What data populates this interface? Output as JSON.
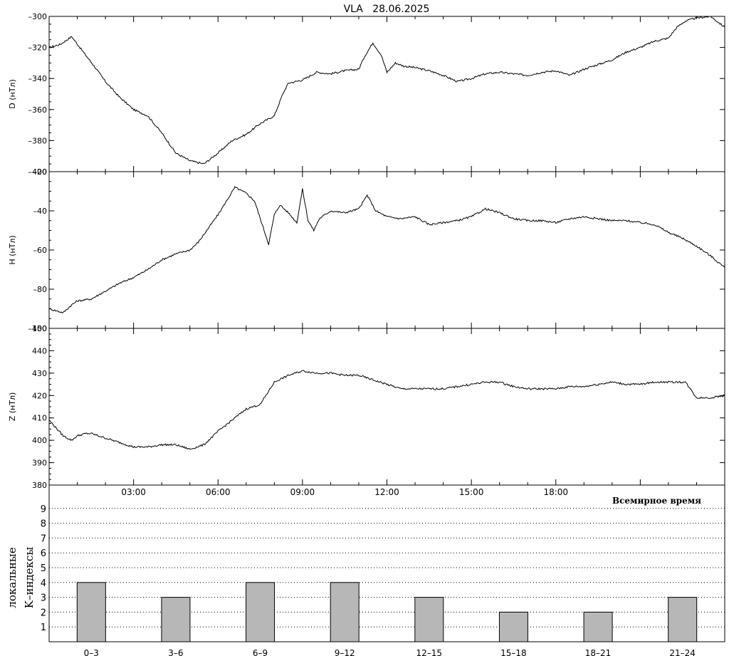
{
  "title": "VLA   28.06.2025",
  "chart_data": [
    {
      "type": "line",
      "id": "D",
      "ylabel": "D (нТл)",
      "ylim": [
        -400,
        -300
      ],
      "yticks": [
        -400,
        -380,
        -360,
        -340,
        -320,
        -300
      ],
      "x": [
        0,
        0.4,
        0.8,
        1.3,
        1.6,
        2,
        2.5,
        3,
        3.5,
        4,
        4.5,
        5,
        5.5,
        6,
        6.5,
        7,
        7.5,
        8,
        8.3,
        8.5,
        9,
        9.5,
        10,
        10.5,
        11,
        11.2,
        11.5,
        11.8,
        12,
        12.3,
        12.6,
        13,
        13.5,
        14,
        14.5,
        15,
        15.5,
        16,
        16.5,
        17,
        17.5,
        18,
        18.5,
        19,
        19.5,
        20,
        20.5,
        21,
        21.5,
        22,
        22.3,
        22.6,
        23,
        23.5,
        24
      ],
      "y": [
        -320,
        -318,
        -313,
        -325,
        -332,
        -342,
        -352,
        -360,
        -364,
        -375,
        -388,
        -393,
        -395,
        -388,
        -380,
        -376,
        -369,
        -364,
        -350,
        -343,
        -341,
        -336,
        -337,
        -335,
        -334,
        -326,
        -317,
        -325,
        -336,
        -330,
        -332,
        -333,
        -335,
        -338,
        -342,
        -340,
        -337,
        -336,
        -337,
        -338,
        -336,
        -335,
        -338,
        -334,
        -331,
        -328,
        -323,
        -320,
        -316,
        -314,
        -307,
        -303,
        -301,
        -300,
        -307
      ]
    },
    {
      "type": "line",
      "id": "H",
      "ylabel": "H (нТл)",
      "ylim": [
        -100,
        -20
      ],
      "yticks": [
        -100,
        -80,
        -60,
        -40,
        -20
      ],
      "x": [
        0,
        0.5,
        0.8,
        1,
        1.5,
        2,
        2.5,
        3,
        3.5,
        4,
        4.5,
        5,
        5.3,
        5.6,
        6,
        6.3,
        6.6,
        7,
        7.3,
        7.5,
        7.8,
        8,
        8.2,
        8.5,
        8.8,
        9,
        9.2,
        9.4,
        9.6,
        9.8,
        10,
        10.5,
        11,
        11.3,
        11.6,
        12,
        12.5,
        13,
        13.5,
        14,
        14.5,
        15,
        15.5,
        16,
        16.5,
        17,
        17.5,
        18,
        18.5,
        19,
        19.5,
        20,
        20.5,
        21,
        21.5,
        22,
        22.5,
        23,
        23.5,
        24
      ],
      "y": [
        -90,
        -92,
        -88,
        -86,
        -85,
        -81,
        -77,
        -74,
        -70,
        -65,
        -62,
        -60,
        -56,
        -50,
        -42,
        -35,
        -28,
        -31,
        -35,
        -44,
        -57,
        -42,
        -37,
        -41,
        -46,
        -29,
        -45,
        -50,
        -44,
        -42,
        -40,
        -41,
        -39,
        -32,
        -40,
        -43,
        -44,
        -43,
        -47,
        -46,
        -45,
        -43,
        -39,
        -41,
        -44,
        -45,
        -45,
        -46,
        -44,
        -43,
        -44,
        -45,
        -45,
        -46,
        -47,
        -51,
        -54,
        -58,
        -63,
        -69
      ]
    },
    {
      "type": "line",
      "id": "Z",
      "ylabel": "Z (нТл)",
      "ylim": [
        380,
        450
      ],
      "yticks": [
        380,
        390,
        400,
        410,
        420,
        430,
        440,
        450
      ],
      "x": [
        0,
        0.5,
        0.8,
        1,
        1.3,
        1.5,
        2,
        2.5,
        3,
        3.5,
        4,
        4.5,
        5,
        5.5,
        6,
        6.5,
        7,
        7.5,
        8,
        8.5,
        9,
        9.5,
        10,
        10.5,
        11,
        11.5,
        12,
        12.5,
        13,
        13.5,
        14,
        14.5,
        15,
        15.5,
        16,
        16.5,
        17,
        17.5,
        18,
        18.5,
        19,
        19.5,
        20,
        20.5,
        21,
        21.5,
        22,
        22.3,
        22.6,
        23,
        23.5,
        24
      ],
      "y": [
        409,
        402,
        400,
        402,
        403,
        403,
        401,
        399,
        397,
        397,
        398,
        398,
        396,
        398,
        404,
        409,
        414,
        416,
        426,
        429,
        431,
        430,
        430,
        429,
        429,
        427,
        425,
        423,
        423,
        423,
        423,
        424,
        425,
        426,
        426,
        424,
        423,
        423,
        423,
        424,
        424,
        425,
        426,
        425,
        425,
        426,
        426,
        426,
        426,
        419,
        419,
        420
      ]
    },
    {
      "type": "bar",
      "id": "K",
      "ylabel": [
        "локальные",
        "K–индексы"
      ],
      "ylim": [
        0,
        9
      ],
      "yticks": [
        1,
        2,
        3,
        4,
        5,
        6,
        7,
        8,
        9
      ],
      "categories": [
        "0–3",
        "3–6",
        "6–9",
        "9–12",
        "12–15",
        "15–18",
        "18–21",
        "21–24"
      ],
      "values": [
        4,
        3,
        4,
        4,
        3,
        2,
        2,
        3
      ],
      "bar_color": "#b7b7b7",
      "grid": "dotted"
    }
  ],
  "time_axis": {
    "labels": [
      "03:00",
      "06:00",
      "09:00",
      "12:00",
      "15:00",
      "18:00"
    ],
    "label_hours": [
      3,
      6,
      9,
      12,
      15,
      18
    ],
    "xlabel": "Всемирное время"
  }
}
